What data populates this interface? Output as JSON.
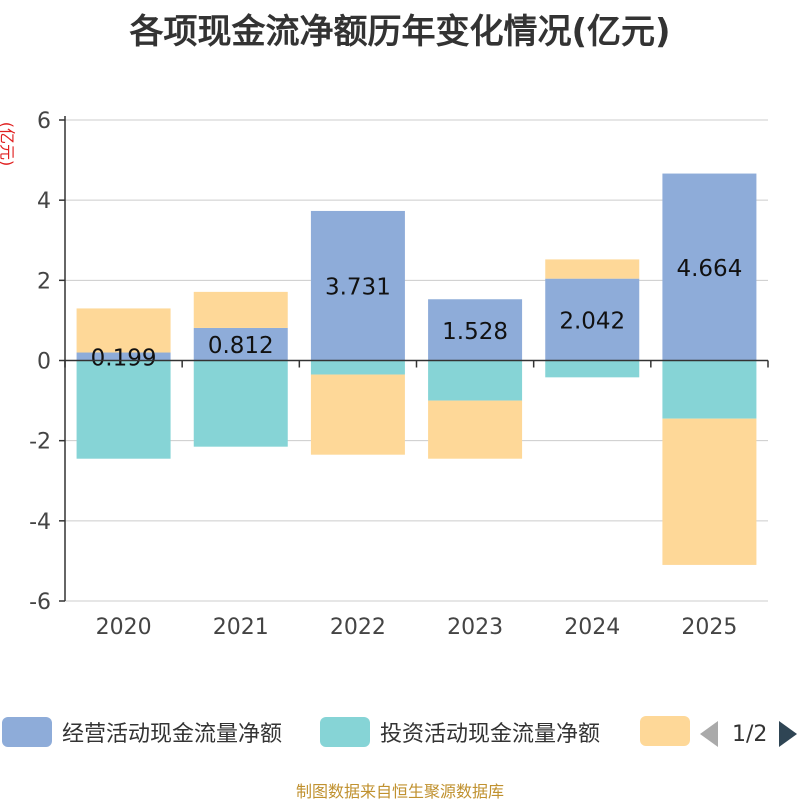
{
  "chart_data": {
    "type": "bar",
    "stacked": true,
    "title": "各项现金流净额历年变化情况(亿元)",
    "ylabel": "(亿元)",
    "xlabel": "",
    "categories": [
      "2020",
      "2021",
      "2022",
      "2023",
      "2024",
      "2025"
    ],
    "ylim": [
      -6,
      6
    ],
    "yticks": [
      6,
      4,
      2,
      0,
      -2,
      -4,
      -6
    ],
    "grid": true,
    "series": [
      {
        "name": "经营活动现金流量净额",
        "color": "#8eacd9",
        "values": [
          0.199,
          0.812,
          3.731,
          1.528,
          2.042,
          4.664
        ],
        "labels": [
          "0.199",
          "0.812",
          "3.731",
          "1.528",
          "2.042",
          "4.664"
        ]
      },
      {
        "name": "投资活动现金流量净额",
        "color": "#86d4d6",
        "values": [
          -2.45,
          -2.15,
          -0.35,
          -1.0,
          -0.42,
          -1.45
        ]
      },
      {
        "name": "",
        "color": "#fed898",
        "values": [
          1.1,
          0.9,
          -2.0,
          -1.45,
          0.48,
          -3.65
        ]
      }
    ]
  },
  "legend": {
    "items": [
      {
        "label": "经营活动现金流量净额",
        "color": "#8eacd9"
      },
      {
        "label": "投资活动现金流量净额",
        "color": "#86d4d6"
      },
      {
        "label": "",
        "color": "#fed898"
      }
    ],
    "page_indicator": "1/2"
  },
  "footer": {
    "source": "制图数据来自恒生聚源数据库"
  }
}
